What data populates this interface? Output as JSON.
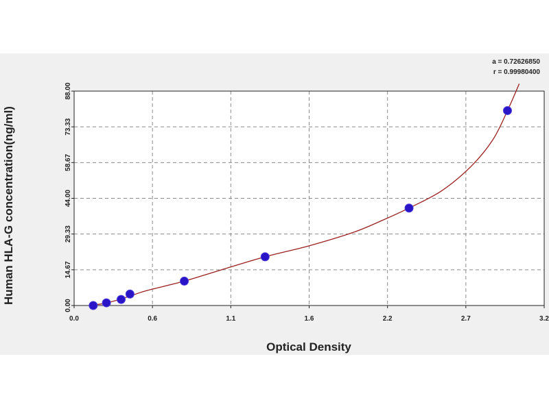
{
  "chart_data": {
    "type": "scatter",
    "xlabel": "Optical Density",
    "ylabel": "Human  HLA-G concentration(ng/ml)",
    "x_ticks": [
      "0.0",
      "0.6",
      "1.1",
      "1.6",
      "2.2",
      "2.7",
      "3.2"
    ],
    "y_ticks": [
      "0.00",
      "14.67",
      "29.33",
      "44.00",
      "58.67",
      "73.33",
      "88.00"
    ],
    "xlim": [
      0.0,
      3.2
    ],
    "ylim": [
      0.0,
      88.0
    ],
    "grid": true,
    "annotations": [
      "a = 0.72626850",
      "r = 0.99980400"
    ],
    "colors": {
      "points": "#2a14c8",
      "curve": "#9b1f1f",
      "grid": "#8a8a8a"
    },
    "points": [
      {
        "x": 0.13,
        "y": 0.0
      },
      {
        "x": 0.22,
        "y": 1.1
      },
      {
        "x": 0.32,
        "y": 2.5
      },
      {
        "x": 0.38,
        "y": 4.7
      },
      {
        "x": 0.75,
        "y": 10.0
      },
      {
        "x": 1.3,
        "y": 20.0
      },
      {
        "x": 2.28,
        "y": 40.0
      },
      {
        "x": 2.95,
        "y": 80.0
      }
    ],
    "fit_curve": [
      {
        "x": 0.1,
        "y": 0.0
      },
      {
        "x": 0.2,
        "y": 0.8
      },
      {
        "x": 0.3,
        "y": 2.3
      },
      {
        "x": 0.4,
        "y": 4.3
      },
      {
        "x": 0.5,
        "y": 6.2
      },
      {
        "x": 0.75,
        "y": 10.0
      },
      {
        "x": 1.0,
        "y": 14.6
      },
      {
        "x": 1.3,
        "y": 20.0
      },
      {
        "x": 1.6,
        "y": 24.5
      },
      {
        "x": 1.9,
        "y": 30.0
      },
      {
        "x": 2.1,
        "y": 35.0
      },
      {
        "x": 2.28,
        "y": 40.0
      },
      {
        "x": 2.5,
        "y": 47.0
      },
      {
        "x": 2.7,
        "y": 57.0
      },
      {
        "x": 2.85,
        "y": 68.0
      },
      {
        "x": 2.95,
        "y": 80.0
      },
      {
        "x": 3.03,
        "y": 91.0
      }
    ]
  }
}
